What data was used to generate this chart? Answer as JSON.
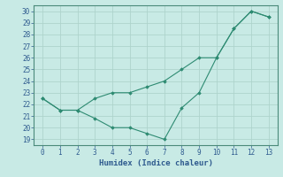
{
  "line1_x": [
    0,
    1,
    2,
    3,
    4,
    5,
    6,
    7,
    8,
    9,
    10,
    11,
    12,
    13
  ],
  "line1_y": [
    22.5,
    21.5,
    21.5,
    22.5,
    23.0,
    23.0,
    23.5,
    24.0,
    25.0,
    26.0,
    26.0,
    28.5,
    30.0,
    29.5
  ],
  "line2_x": [
    0,
    1,
    2,
    3,
    4,
    5,
    6,
    7,
    8,
    9,
    10,
    11,
    12,
    13
  ],
  "line2_y": [
    22.5,
    21.5,
    21.5,
    20.8,
    20.0,
    20.0,
    19.5,
    19.0,
    21.7,
    23.0,
    26.0,
    28.5,
    30.0,
    29.5
  ],
  "color": "#2e8b72",
  "bg_color": "#c8eae5",
  "grid_color": "#aed4cc",
  "xlabel": "Humidex (Indice chaleur)",
  "yticks": [
    19,
    20,
    21,
    22,
    23,
    24,
    25,
    26,
    27,
    28,
    29,
    30
  ],
  "xticks": [
    0,
    1,
    2,
    3,
    4,
    5,
    6,
    7,
    8,
    9,
    10,
    11,
    12,
    13
  ],
  "xlim": [
    -0.5,
    13.5
  ],
  "ylim": [
    18.5,
    30.5
  ],
  "tick_color": "#2e5a8e",
  "xlabel_color": "#2e5a8e",
  "spine_color": "#4a8a7a"
}
